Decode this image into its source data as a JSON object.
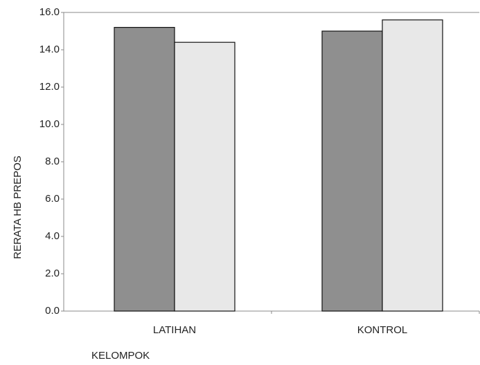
{
  "chart_data": {
    "type": "bar",
    "ylabel": "RERATA HB PREPOS",
    "xlabel": "KELOMPOK",
    "categories": [
      "LATIHAN",
      "KONTROL"
    ],
    "series": [
      {
        "color": "#8f8f8f",
        "values": [
          15.2,
          15.0
        ]
      },
      {
        "color": "#e8e8e8",
        "values": [
          14.4,
          15.6
        ]
      }
    ],
    "ylim": [
      0,
      16
    ],
    "yticks": [
      {
        "value": 0,
        "label": "0.0"
      },
      {
        "value": 2,
        "label": "2.0"
      },
      {
        "value": 4,
        "label": "4.0"
      },
      {
        "value": 6,
        "label": "6.0"
      },
      {
        "value": 8,
        "label": "8.0"
      },
      {
        "value": 10,
        "label": "10.0"
      },
      {
        "value": 12,
        "label": "12.0"
      },
      {
        "value": 14,
        "label": "14.0"
      },
      {
        "value": 16,
        "label": "16.0"
      }
    ],
    "grid": false
  }
}
